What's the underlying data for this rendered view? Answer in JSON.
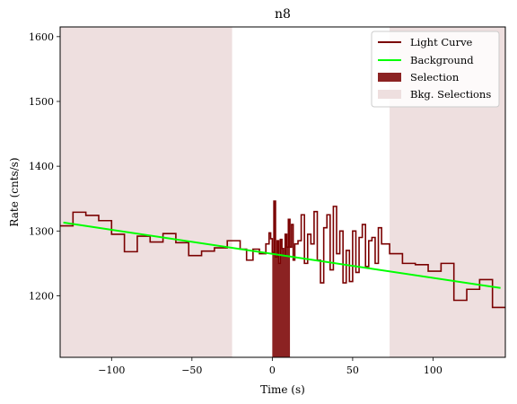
{
  "chart_data": {
    "type": "line",
    "title": "n8",
    "xlabel": "Time (s)",
    "ylabel": "Rate (cnts/s)",
    "xlim": [
      -132,
      145
    ],
    "ylim": [
      1105,
      1615
    ],
    "xticks": [
      -100,
      -50,
      0,
      50,
      100
    ],
    "xtick_labels": [
      "−100",
      "−50",
      "0",
      "50",
      "100"
    ],
    "yticks": [
      1200,
      1300,
      1400,
      1500,
      1600
    ],
    "ytick_labels": [
      "1200",
      "1300",
      "1400",
      "1500",
      "1600"
    ],
    "legend_position": "top-right",
    "colors": {
      "light_curve": "#7a0000",
      "background": "#00ff00",
      "selection": "#8b2222",
      "bkg_selection": "#eedfdf"
    },
    "legend": [
      "Light Curve",
      "Background",
      "Selection",
      "Bkg. Selections"
    ],
    "light_curve": {
      "step_edges": [
        -132,
        -124,
        -116,
        -108,
        -100,
        -92,
        -84,
        -76,
        -68,
        -60,
        -52,
        -44,
        -36,
        -28,
        -20,
        -16,
        -12,
        -8,
        -4,
        -2,
        -1,
        0,
        1,
        2,
        3,
        4,
        5,
        6,
        7,
        8,
        9,
        10,
        11,
        12,
        13,
        14,
        16,
        18,
        20,
        22,
        24,
        26,
        28,
        30,
        32,
        34,
        36,
        38,
        40,
        42,
        44,
        46,
        48,
        50,
        52,
        54,
        56,
        58,
        60,
        62,
        64,
        66,
        68,
        73,
        81,
        89,
        97,
        105,
        113,
        121,
        129,
        137,
        145
      ],
      "values": [
        1308,
        1329,
        1324,
        1316,
        1295,
        1268,
        1292,
        1283,
        1296,
        1282,
        1262,
        1269,
        1274,
        1285,
        1272,
        1255,
        1272,
        1265,
        1280,
        1297,
        1288,
        1267,
        1346,
        1260,
        1285,
        1250,
        1287,
        1273,
        1262,
        1295,
        1275,
        1318,
        1275,
        1310,
        1255,
        1280,
        1285,
        1325,
        1250,
        1295,
        1280,
        1330,
        1255,
        1220,
        1305,
        1325,
        1240,
        1338,
        1265,
        1300,
        1220,
        1270,
        1222,
        1300,
        1236,
        1290,
        1310,
        1245,
        1285,
        1290,
        1250,
        1305,
        1280,
        1265,
        1250,
        1248,
        1238,
        1250,
        1193,
        1210,
        1225,
        1182
      ]
    },
    "background": {
      "x": [
        -130,
        142
      ],
      "y": [
        1313,
        1212
      ]
    },
    "selection": {
      "x": [
        0,
        11
      ]
    },
    "bkg_selections": [
      {
        "x": [
          -132,
          -25
        ]
      },
      {
        "x": [
          73,
          145
        ]
      }
    ]
  }
}
